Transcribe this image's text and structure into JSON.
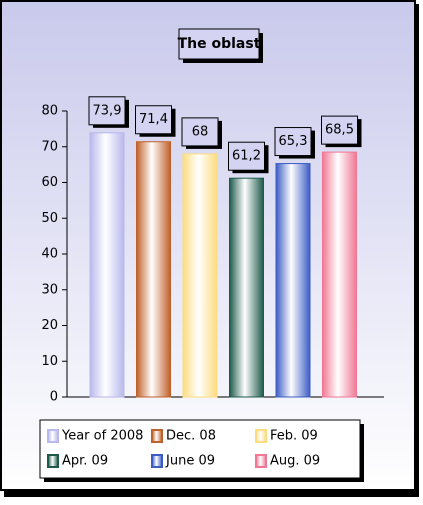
{
  "chart_data": {
    "type": "bar",
    "title": "The oblast",
    "categories": [
      "Year of 2008",
      "Dec. 08",
      "Feb. 09",
      "Apr. 09",
      "June 09",
      "Aug. 09"
    ],
    "values": [
      73.9,
      71.4,
      68,
      61.2,
      65.3,
      68.5
    ],
    "value_labels": [
      "73,9",
      "71,4",
      "68",
      "61,2",
      "65,3",
      "68,5"
    ],
    "colors": [
      "#b8b8ec",
      "#c0602a",
      "#fddc80",
      "#1e5a4a",
      "#3c5cc4",
      "#f07894"
    ],
    "ylim": [
      0,
      80
    ],
    "yticks": [
      0,
      10,
      20,
      30,
      40,
      50,
      60,
      70,
      80
    ]
  }
}
